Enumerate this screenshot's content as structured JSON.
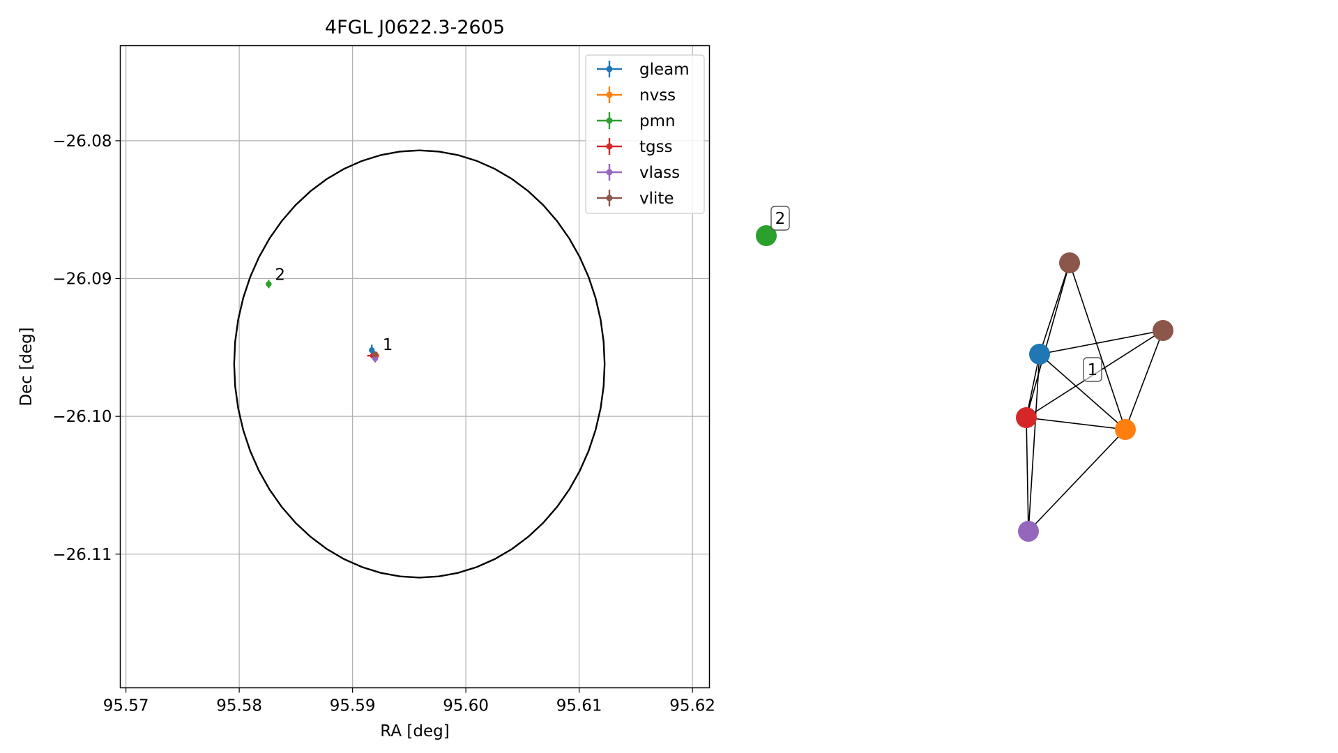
{
  "chart_data": [
    {
      "type": "scatter",
      "title": "4FGL J0622.3-2605",
      "xlabel": "RA [deg]",
      "ylabel": "Dec [deg]",
      "xlim": [
        95.5695,
        95.6215
      ],
      "ylim": [
        -26.1197,
        -26.0731
      ],
      "xticks": [
        "95.57",
        "95.58",
        "95.59",
        "95.60",
        "95.61",
        "95.62"
      ],
      "xtick_values": [
        95.57,
        95.58,
        95.59,
        95.6,
        95.61,
        95.62
      ],
      "yticks": [
        "−26.08",
        "−26.09",
        "−26.10",
        "−26.11"
      ],
      "ytick_values": [
        -26.08,
        -26.09,
        -26.1,
        -26.11
      ],
      "grid": true,
      "legend_position": "top-right",
      "ellipse": {
        "ra_center": 95.5959,
        "dec_center": -26.0962,
        "ra_radius": 0.01635,
        "dec_radius": 0.0155,
        "color": "#000000"
      },
      "series": [
        {
          "name": "gleam",
          "color": "#1f77b4",
          "points": [
            {
              "x": 95.5917,
              "y": -26.0952,
              "xerr": 0.0002,
              "yerr": 0.0004
            }
          ]
        },
        {
          "name": "nvss",
          "color": "#ff7f0e",
          "points": [
            {
              "x": 95.5921,
              "y": -26.0956,
              "xerr": 0.0001,
              "yerr": 0.0002
            }
          ]
        },
        {
          "name": "pmn",
          "color": "#2ca02c",
          "points": [
            {
              "x": 95.5826,
              "y": -26.0904,
              "xerr": 0.0001,
              "yerr": 0.0003
            }
          ]
        },
        {
          "name": "tgss",
          "color": "#d62728",
          "points": [
            {
              "x": 95.5918,
              "y": -26.0956,
              "xerr": 0.0005,
              "yerr": 0.0002
            }
          ]
        },
        {
          "name": "vlass",
          "color": "#9467bd",
          "points": [
            {
              "x": 95.592,
              "y": -26.0958,
              "xerr": 0.0001,
              "yerr": 0.0003
            }
          ]
        },
        {
          "name": "vlite",
          "color": "#8c564b",
          "points": [
            {
              "x": 95.592,
              "y": -26.0955,
              "xerr": 0.0002,
              "yerr": 0.0002
            }
          ]
        }
      ],
      "annotations": [
        {
          "text": "1",
          "x": 95.5921,
          "y": -26.0955
        },
        {
          "text": "2",
          "x": 95.5826,
          "y": -26.0904
        }
      ]
    },
    {
      "type": "network",
      "nodes": [
        {
          "id": "pmn",
          "color": "#2ca02c"
        },
        {
          "id": "vlite_a",
          "color": "#8c564b"
        },
        {
          "id": "vlite_b",
          "color": "#8c564b"
        },
        {
          "id": "gleam",
          "color": "#1f77b4"
        },
        {
          "id": "tgss",
          "color": "#d62728"
        },
        {
          "id": "nvss",
          "color": "#ff7f0e"
        },
        {
          "id": "vlass",
          "color": "#9467bd"
        }
      ],
      "edges": [
        [
          "vlite_a",
          "gleam"
        ],
        [
          "vlite_a",
          "tgss"
        ],
        [
          "vlite_a",
          "nvss"
        ],
        [
          "gleam",
          "vlite_b"
        ],
        [
          "gleam",
          "tgss"
        ],
        [
          "gleam",
          "nvss"
        ],
        [
          "gleam",
          "vlass"
        ],
        [
          "tgss",
          "vlite_b"
        ],
        [
          "tgss",
          "nvss"
        ],
        [
          "tgss",
          "vlass"
        ],
        [
          "vlite_b",
          "nvss"
        ],
        [
          "nvss",
          "vlass"
        ]
      ],
      "labels": [
        {
          "text": "2"
        },
        {
          "text": "1"
        }
      ]
    }
  ]
}
